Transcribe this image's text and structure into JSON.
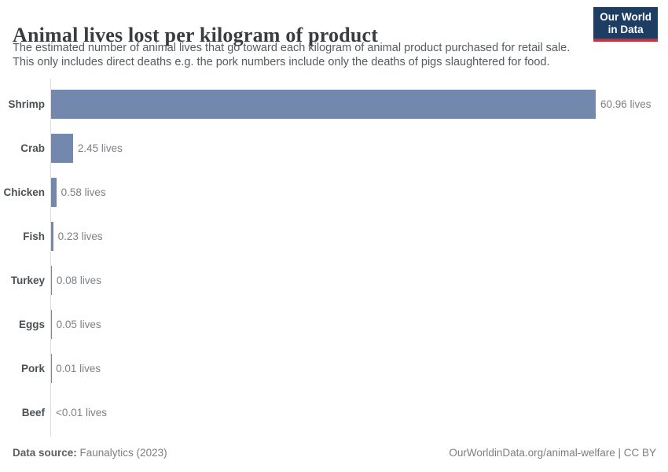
{
  "header": {
    "title": "Animal lives lost per kilogram of product",
    "subtitle_line1": "The estimated number of animal lives that go toward each kilogram of animal product purchased for retail sale.",
    "subtitle_line2": "This only includes direct deaths e.g. the pork numbers include only the deaths of pigs slaughtered for food.",
    "logo": {
      "line1": "Our World",
      "line2": "in Data",
      "bg_color": "#1d3d63",
      "accent_color": "#c5303e"
    }
  },
  "chart_data": {
    "type": "bar",
    "orientation": "horizontal",
    "title": "Animal lives lost per kilogram of product",
    "xlabel": "",
    "ylabel": "",
    "xlim": [
      0,
      60.96
    ],
    "grid": false,
    "legend": "none",
    "unit": "lives",
    "bar_color": "#7289ad",
    "categories": [
      "Shrimp",
      "Crab",
      "Chicken",
      "Fish",
      "Turkey",
      "Eggs",
      "Pork",
      "Beef"
    ],
    "values": [
      60.96,
      2.45,
      0.58,
      0.23,
      0.08,
      0.05,
      0.01,
      0.005
    ],
    "value_labels": [
      "60.96 lives",
      "2.45 lives",
      "0.58 lives",
      "0.23 lives",
      "0.08 lives",
      "0.05 lives",
      "0.01 lives",
      "<0.01 lives"
    ]
  },
  "footer": {
    "source_label": "Data source:",
    "source_value": " Faunalytics (2023)",
    "credit": "OurWorldinData.org/animal-welfare | CC BY"
  }
}
